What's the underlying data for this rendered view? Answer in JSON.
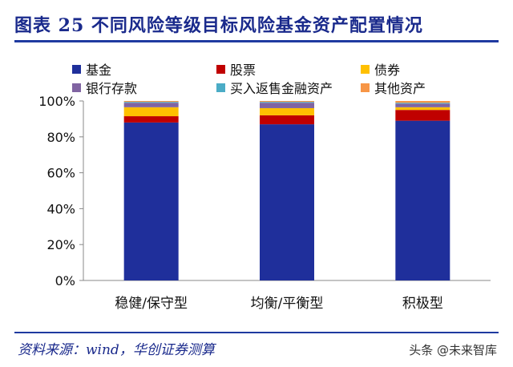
{
  "header": {
    "title": "图表 25   不同风险等级目标风险基金资产配置情况"
  },
  "footer": {
    "source": "资料来源：wind，华创证券测算"
  },
  "watermark": {
    "text": "头条 @未来智库"
  },
  "chart_data": {
    "type": "bar",
    "stacked": true,
    "categories": [
      "稳健/保守型",
      "均衡/平衡型",
      "积极型"
    ],
    "ylim": [
      0,
      100
    ],
    "yticks": [
      "0%",
      "20%",
      "40%",
      "60%",
      "80%",
      "100%"
    ],
    "ytick_values": [
      0,
      20,
      40,
      60,
      80,
      100
    ],
    "legend_position": "top",
    "grid": false,
    "series": [
      {
        "name": "基金",
        "color": "#1f2f9b",
        "values": [
          88,
          87,
          89
        ]
      },
      {
        "name": "股票",
        "color": "#c00000",
        "values": [
          3.5,
          5,
          6
        ]
      },
      {
        "name": "债券",
        "color": "#ffc000",
        "values": [
          5,
          4,
          1.5
        ]
      },
      {
        "name": "银行存款",
        "color": "#8064a2",
        "values": [
          2.5,
          3,
          2
        ]
      },
      {
        "name": "买入返售金融资产",
        "color": "#4bacc6",
        "values": [
          0.5,
          0.5,
          0.5
        ]
      },
      {
        "name": "其他资产",
        "color": "#f79646",
        "values": [
          0.5,
          0.5,
          1
        ]
      }
    ]
  }
}
